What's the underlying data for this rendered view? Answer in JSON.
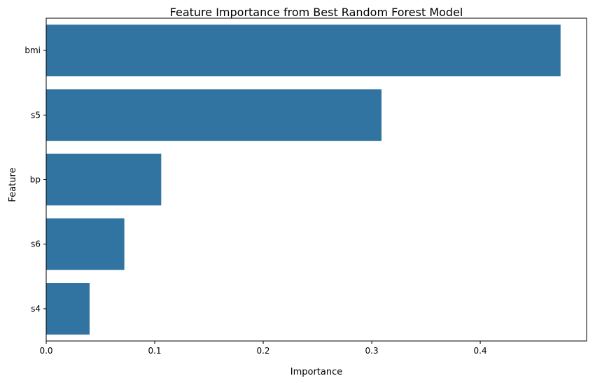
{
  "chart_data": {
    "type": "bar",
    "orientation": "horizontal",
    "title": "Feature Importance from Best Random Forest Model",
    "xlabel": "Importance",
    "ylabel": "Feature",
    "categories": [
      "bmi",
      "s5",
      "bp",
      "s6",
      "s4"
    ],
    "values": [
      0.474,
      0.309,
      0.106,
      0.072,
      0.04
    ],
    "xlim": [
      0,
      0.498
    ],
    "xticks": [
      "0.0",
      "0.1",
      "0.2",
      "0.3",
      "0.4"
    ],
    "grid": false,
    "bar_color": "#3274a1"
  }
}
